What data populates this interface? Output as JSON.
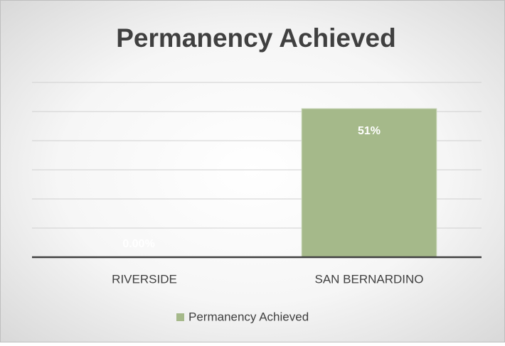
{
  "chart_data": {
    "type": "bar",
    "title": "Permanency Achieved",
    "categories": [
      "RIVERSIDE",
      "SAN BERNARDINO"
    ],
    "series": [
      {
        "name": "Permanency Achieved",
        "color": "#a5b98a",
        "values": [
          0,
          51
        ],
        "value_labels": [
          "0.00%",
          "51%"
        ]
      }
    ],
    "ylim": [
      0,
      60
    ],
    "yticks": [
      0,
      10,
      20,
      30,
      40,
      50,
      60
    ],
    "grid": true,
    "legend": "bottom"
  }
}
